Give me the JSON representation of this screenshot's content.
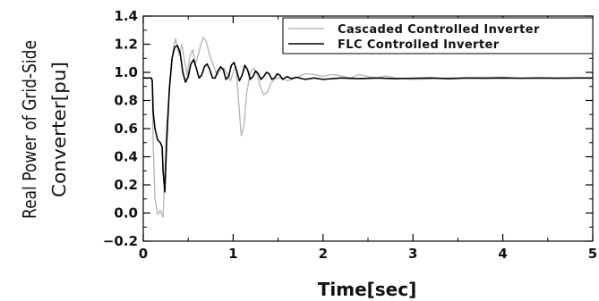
{
  "chart_data": {
    "type": "line",
    "title": "",
    "xlabel": "Time[sec]",
    "ylabel": [
      "Real Power of Grid-Side",
      "Converter[pu]"
    ],
    "xlim": [
      0,
      5
    ],
    "ylim": [
      -0.2,
      1.4
    ],
    "x_ticks": [
      "0",
      "1",
      "2",
      "3",
      "4",
      "5"
    ],
    "y_ticks": [
      "−0.2",
      "0.0",
      "0.2",
      "0.4",
      "0.6",
      "0.8",
      "1.0",
      "1.2",
      "1.4"
    ],
    "grid": false,
    "legend_position": "top-right",
    "series": [
      {
        "name": "Cascaded Controlled Inverter",
        "color": "#b8b8b8",
        "points": [
          [
            0,
            0.96
          ],
          [
            0.09,
            0.96
          ],
          [
            0.1,
            0.95
          ],
          [
            0.11,
            0.5
          ],
          [
            0.13,
            0.1
          ],
          [
            0.16,
            -0.01
          ],
          [
            0.19,
            0.02
          ],
          [
            0.22,
            -0.03
          ],
          [
            0.26,
            0.6
          ],
          [
            0.3,
            0.95
          ],
          [
            0.33,
            1.15
          ],
          [
            0.36,
            1.24
          ],
          [
            0.38,
            1.18
          ],
          [
            0.4,
            1.12
          ],
          [
            0.43,
            1.2
          ],
          [
            0.46,
            1.08
          ],
          [
            0.49,
            0.98
          ],
          [
            0.52,
            1.12
          ],
          [
            0.55,
            1.16
          ],
          [
            0.58,
            1.06
          ],
          [
            0.61,
            1.12
          ],
          [
            0.64,
            1.2
          ],
          [
            0.67,
            1.25
          ],
          [
            0.7,
            1.22
          ],
          [
            0.74,
            1.12
          ],
          [
            0.78,
            1.05
          ],
          [
            0.82,
            0.98
          ],
          [
            0.86,
            1.02
          ],
          [
            0.9,
            1.03
          ],
          [
            0.94,
            0.98
          ],
          [
            0.97,
            0.94
          ],
          [
            1.0,
            1.0
          ],
          [
            1.03,
            1.04
          ],
          [
            1.06,
            0.8
          ],
          [
            1.09,
            0.55
          ],
          [
            1.12,
            0.62
          ],
          [
            1.15,
            0.85
          ],
          [
            1.19,
            1.0
          ],
          [
            1.23,
            1.03
          ],
          [
            1.27,
            0.98
          ],
          [
            1.3,
            0.9
          ],
          [
            1.34,
            0.84
          ],
          [
            1.38,
            0.86
          ],
          [
            1.42,
            0.92
          ],
          [
            1.46,
            0.95
          ],
          [
            1.5,
            0.96
          ],
          [
            1.55,
            0.96
          ],
          [
            1.6,
            0.94
          ],
          [
            1.65,
            0.95
          ],
          [
            1.7,
            0.96
          ],
          [
            1.8,
            0.99
          ],
          [
            1.9,
            0.985
          ],
          [
            2.0,
            0.97
          ],
          [
            2.1,
            0.985
          ],
          [
            2.2,
            0.975
          ],
          [
            2.3,
            0.96
          ],
          [
            2.4,
            0.985
          ],
          [
            2.5,
            0.97
          ],
          [
            2.6,
            0.96
          ],
          [
            2.7,
            0.975
          ],
          [
            2.8,
            0.96
          ],
          [
            2.9,
            0.955
          ],
          [
            3.0,
            0.95
          ],
          [
            3.2,
            0.955
          ],
          [
            3.4,
            0.96
          ],
          [
            3.6,
            0.96
          ],
          [
            3.8,
            0.965
          ],
          [
            4.0,
            0.965
          ],
          [
            4.2,
            0.96
          ],
          [
            4.4,
            0.96
          ],
          [
            4.6,
            0.962
          ],
          [
            4.8,
            0.96
          ],
          [
            5.0,
            0.96
          ]
        ]
      },
      {
        "name": "FLC Controlled Inverter",
        "color": "#000000",
        "points": [
          [
            0,
            0.96
          ],
          [
            0.09,
            0.96
          ],
          [
            0.1,
            0.94
          ],
          [
            0.11,
            0.72
          ],
          [
            0.13,
            0.6
          ],
          [
            0.16,
            0.52
          ],
          [
            0.19,
            0.5
          ],
          [
            0.21,
            0.47
          ],
          [
            0.22,
            0.3
          ],
          [
            0.24,
            0.15
          ],
          [
            0.26,
            0.5
          ],
          [
            0.29,
            0.88
          ],
          [
            0.32,
            1.1
          ],
          [
            0.35,
            1.18
          ],
          [
            0.38,
            1.19
          ],
          [
            0.41,
            1.14
          ],
          [
            0.44,
            1.0
          ],
          [
            0.47,
            0.93
          ],
          [
            0.5,
            0.97
          ],
          [
            0.53,
            1.06
          ],
          [
            0.56,
            1.09
          ],
          [
            0.59,
            1.03
          ],
          [
            0.62,
            0.96
          ],
          [
            0.65,
            0.98
          ],
          [
            0.68,
            1.04
          ],
          [
            0.71,
            1.06
          ],
          [
            0.74,
            1.02
          ],
          [
            0.77,
            0.96
          ],
          [
            0.8,
            0.96
          ],
          [
            0.83,
            1.01
          ],
          [
            0.86,
            1.04
          ],
          [
            0.89,
            1.02
          ],
          [
            0.92,
            0.95
          ],
          [
            0.95,
            0.97
          ],
          [
            0.98,
            1.05
          ],
          [
            1.01,
            1.07
          ],
          [
            1.04,
            1.01
          ],
          [
            1.07,
            0.94
          ],
          [
            1.1,
            0.98
          ],
          [
            1.13,
            1.05
          ],
          [
            1.16,
            1.02
          ],
          [
            1.19,
            0.95
          ],
          [
            1.22,
            0.97
          ],
          [
            1.25,
            1.01
          ],
          [
            1.28,
            0.99
          ],
          [
            1.31,
            0.95
          ],
          [
            1.34,
            0.97
          ],
          [
            1.37,
            1.0
          ],
          [
            1.4,
            0.99
          ],
          [
            1.43,
            0.95
          ],
          [
            1.46,
            0.96
          ],
          [
            1.49,
            0.99
          ],
          [
            1.52,
            0.98
          ],
          [
            1.55,
            0.95
          ],
          [
            1.6,
            0.97
          ],
          [
            1.65,
            0.955
          ],
          [
            1.7,
            0.965
          ],
          [
            1.8,
            0.95
          ],
          [
            1.9,
            0.96
          ],
          [
            2.0,
            0.95
          ],
          [
            2.2,
            0.96
          ],
          [
            2.4,
            0.955
          ],
          [
            2.6,
            0.96
          ],
          [
            2.8,
            0.955
          ],
          [
            3.0,
            0.958
          ],
          [
            3.2,
            0.96
          ],
          [
            3.4,
            0.955
          ],
          [
            3.6,
            0.96
          ],
          [
            3.8,
            0.958
          ],
          [
            4.0,
            0.96
          ],
          [
            4.2,
            0.958
          ],
          [
            4.4,
            0.96
          ],
          [
            4.6,
            0.958
          ],
          [
            4.8,
            0.96
          ],
          [
            5.0,
            0.96
          ]
        ]
      }
    ]
  }
}
